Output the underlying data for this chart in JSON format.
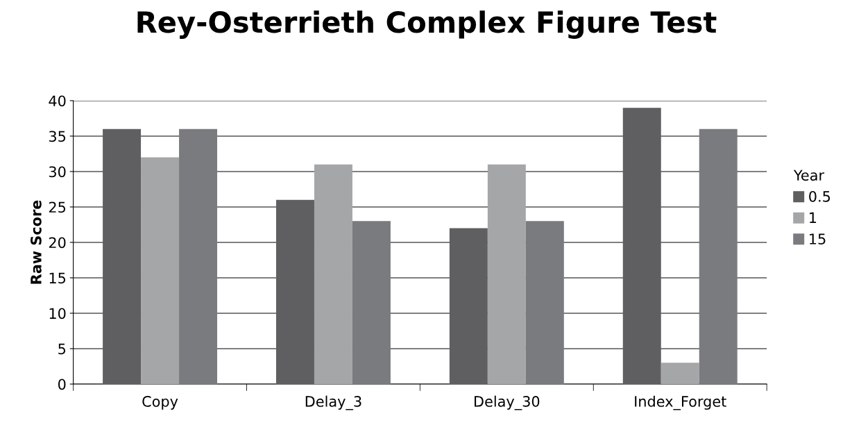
{
  "chart_data": {
    "type": "bar",
    "title": "Rey-Osterrieth Complex Figure Test",
    "ylabel": "Raw Score",
    "legend_title": "Year",
    "categories": [
      "Copy",
      "Delay_3",
      "Delay_30",
      "Index_Forget"
    ],
    "series": [
      {
        "name": "0.5",
        "color": "#5f5f61",
        "values": [
          36,
          26,
          22,
          39
        ]
      },
      {
        "name": "1",
        "color": "#a5a6a8",
        "values": [
          32,
          31,
          31,
          3
        ]
      },
      {
        "name": "15",
        "color": "#7a7b7e",
        "values": [
          36,
          23,
          23,
          36
        ]
      }
    ],
    "ylim": [
      0,
      40
    ],
    "yticks": [
      0,
      5,
      10,
      15,
      20,
      25,
      30,
      35,
      40
    ],
    "grid": "y",
    "legend": "right"
  }
}
